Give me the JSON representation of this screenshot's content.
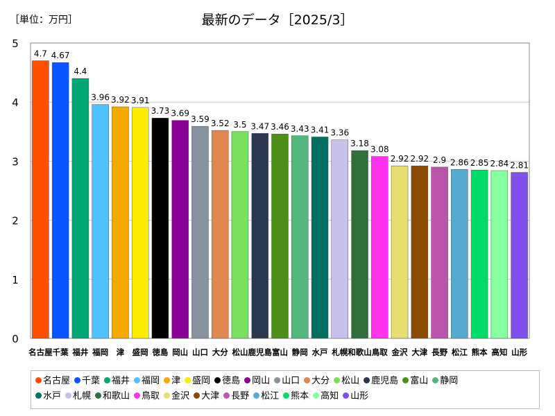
{
  "unit_label": "［単位：万円］",
  "chart_data": {
    "type": "bar",
    "title": "最新のデータ［2025/3］",
    "categories": [
      "名古屋",
      "千葉",
      "福井",
      "福岡",
      "津",
      "盛岡",
      "徳島",
      "岡山",
      "山口",
      "大分",
      "松山",
      "鹿児島",
      "富山",
      "静岡",
      "水戸",
      "札幌",
      "和歌山",
      "鳥取",
      "金沢",
      "大津",
      "長野",
      "松江",
      "熊本",
      "高知",
      "山形"
    ],
    "values": [
      4.7,
      4.67,
      4.4,
      3.96,
      3.92,
      3.91,
      3.73,
      3.69,
      3.59,
      3.52,
      3.5,
      3.47,
      3.46,
      3.43,
      3.41,
      3.36,
      3.18,
      3.08,
      2.92,
      2.92,
      2.9,
      2.86,
      2.85,
      2.84,
      2.81
    ],
    "value_labels": [
      "4.7",
      "4.67",
      "4.4",
      "3.96",
      "3.92",
      "3.91",
      "3.73",
      "3.69",
      "3.59",
      "3.52",
      "3.5",
      "3.47",
      "3.46",
      "3.43",
      "3.41",
      "3.36",
      "3.18",
      "3.08",
      "2.92",
      "2.92",
      "2.9",
      "2.86",
      "2.85",
      "2.84",
      "2.81"
    ],
    "colors": [
      "#ff5000",
      "#0a55ff",
      "#02a574",
      "#4fc3ff",
      "#f5a800",
      "#ffee00",
      "#000000",
      "#8b0094",
      "#8594a0",
      "#e08850",
      "#7be060",
      "#2b3650",
      "#4b8f18",
      "#52b87c",
      "#006e62",
      "#c6c2ec",
      "#2e6f3c",
      "#ff33ee",
      "#e6de6e",
      "#8a4a00",
      "#bb55aa",
      "#56acd0",
      "#00dd66",
      "#88ff9e",
      "#8050ee"
    ],
    "ylim": [
      0,
      5
    ],
    "yticks": [
      "0",
      "1",
      "2",
      "3",
      "4",
      "5"
    ],
    "xlabel": "",
    "ylabel": "",
    "grid": true,
    "legend_position": "bottom"
  }
}
